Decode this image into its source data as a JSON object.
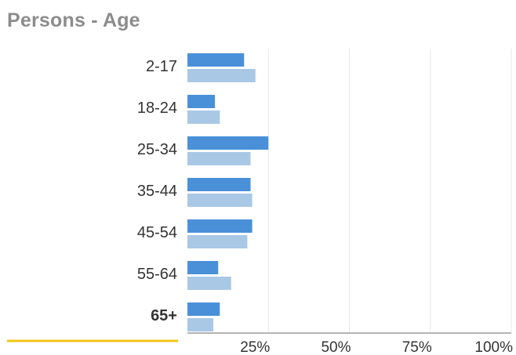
{
  "title": "Persons - Age",
  "chart_data": {
    "type": "bar",
    "orientation": "horizontal",
    "categories": [
      "2-17",
      "18-24",
      "25-34",
      "35-44",
      "45-54",
      "55-64",
      "65+"
    ],
    "selected_category": "65+",
    "series": [
      {
        "values": [
          17.5,
          8.5,
          25.0,
          19.5,
          20.0,
          9.5,
          10.0
        ]
      },
      {
        "values": [
          21.0,
          10.0,
          19.5,
          20.0,
          18.5,
          13.5,
          8.0
        ]
      }
    ],
    "xlim": [
      0,
      100
    ],
    "xticks": [
      "25%",
      "50%",
      "75%",
      "100%"
    ],
    "xtick_values": [
      25,
      50,
      75,
      100
    ],
    "grid": true,
    "colors": {
      "series": [
        "#4a90d9",
        "#a9c8e6"
      ],
      "grid": "#e8e8e8",
      "axis": "#b4b4b4",
      "highlight": "#f0c419",
      "title": "#8c8c8c",
      "text": "#333333"
    }
  }
}
